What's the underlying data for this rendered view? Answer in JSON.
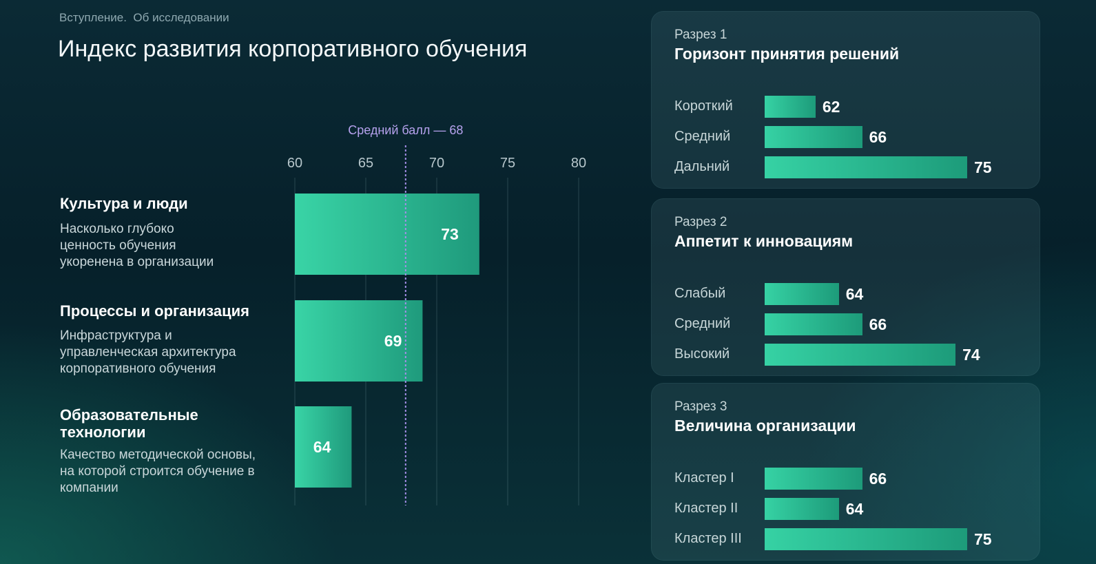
{
  "breadcrumb": "Вступление.  Об исследовании",
  "title": "Индекс развития корпоративного обучения",
  "chart_data": [
    {
      "type": "bar",
      "orientation": "horizontal",
      "x_axis_ticks": [
        60,
        65,
        70,
        75,
        80
      ],
      "xlim": [
        60,
        80
      ],
      "grid": true,
      "reference_line": {
        "label": "Средний балл — 68",
        "value": 68
      },
      "categories": [
        {
          "title": "Культура и люди",
          "description": "Насколько глубоко ценность обучения укоренена в организации",
          "value": 73,
          "value_label": "73"
        },
        {
          "title": "Процессы и организация",
          "description": "Инфраструктура и управленческая архитектура корпоративного обучения",
          "value": 69,
          "value_label": "69"
        },
        {
          "title": "Образовательные технологии",
          "description": "Качество методической основы, на которой строится обучение в компании",
          "value": 64,
          "value_label": "64"
        }
      ],
      "colors": {
        "bar": "#36d2a4",
        "reference_line": "#a58ee8"
      }
    },
    {
      "type": "bar",
      "orientation": "horizontal",
      "label": "Разрез 1",
      "title": "Горизонт принятия решений",
      "rows": [
        {
          "label": "Короткий",
          "value": 62,
          "value_label": "62"
        },
        {
          "label": "Средний",
          "value": 66,
          "value_label": "66"
        },
        {
          "label": "Дальний",
          "value": 75,
          "value_label": "75"
        }
      ]
    },
    {
      "type": "bar",
      "orientation": "horizontal",
      "label": "Разрез 2",
      "title": "Аппетит к инновациям",
      "rows": [
        {
          "label": "Слабый",
          "value": 64,
          "value_label": "64"
        },
        {
          "label": "Средний",
          "value": 66,
          "value_label": "66"
        },
        {
          "label": "Высокий",
          "value": 74,
          "value_label": "74"
        }
      ]
    },
    {
      "type": "bar",
      "orientation": "horizontal",
      "label": "Разрез 3",
      "title": "Величина организации",
      "rows": [
        {
          "label": "Кластер I",
          "value": 66,
          "value_label": "66"
        },
        {
          "label": "Кластер II",
          "value": 64,
          "value_label": "64"
        },
        {
          "label": "Кластер III",
          "value": 75,
          "value_label": "75"
        }
      ]
    }
  ]
}
